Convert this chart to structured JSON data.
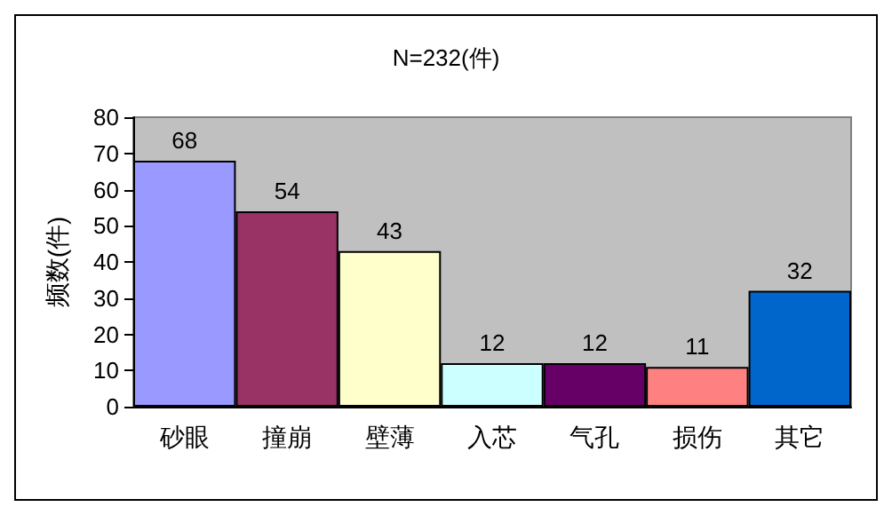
{
  "chart_data": {
    "type": "bar",
    "title": "N=232(件)",
    "ylabel": "频数(件)",
    "categories": [
      "砂眼",
      "撞崩",
      "壁薄",
      "入芯",
      "气孔",
      "损伤",
      "其它"
    ],
    "values": [
      68,
      54,
      43,
      12,
      12,
      11,
      32
    ],
    "colors": [
      "#9999ff",
      "#993366",
      "#ffffcc",
      "#ccffff",
      "#660066",
      "#ff8080",
      "#0066cc"
    ],
    "ylim": [
      0,
      80
    ],
    "yticks": [
      0,
      10,
      20,
      30,
      40,
      50,
      60,
      70,
      80
    ],
    "grid": false,
    "data_labels": true
  }
}
